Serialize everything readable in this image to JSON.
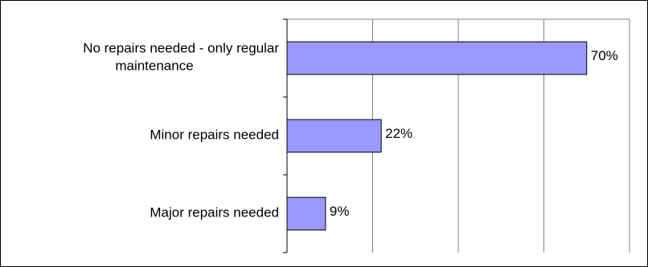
{
  "chart_data": {
    "type": "bar",
    "orientation": "horizontal",
    "categories": [
      [
        "No repairs needed - only regular",
        "maintenance"
      ],
      [
        "Minor repairs needed"
      ],
      [
        "Major repairs needed"
      ]
    ],
    "values": [
      70,
      22,
      9
    ],
    "value_labels": [
      "70%",
      "22%",
      "9%"
    ],
    "xlim": [
      0,
      80
    ],
    "x_gridlines": [
      0,
      20,
      40,
      60,
      80
    ],
    "grid": true,
    "legend": "none",
    "colors": {
      "bar_fill": "#9999ff",
      "bar_stroke": "#000000",
      "grid": "#808080"
    }
  }
}
